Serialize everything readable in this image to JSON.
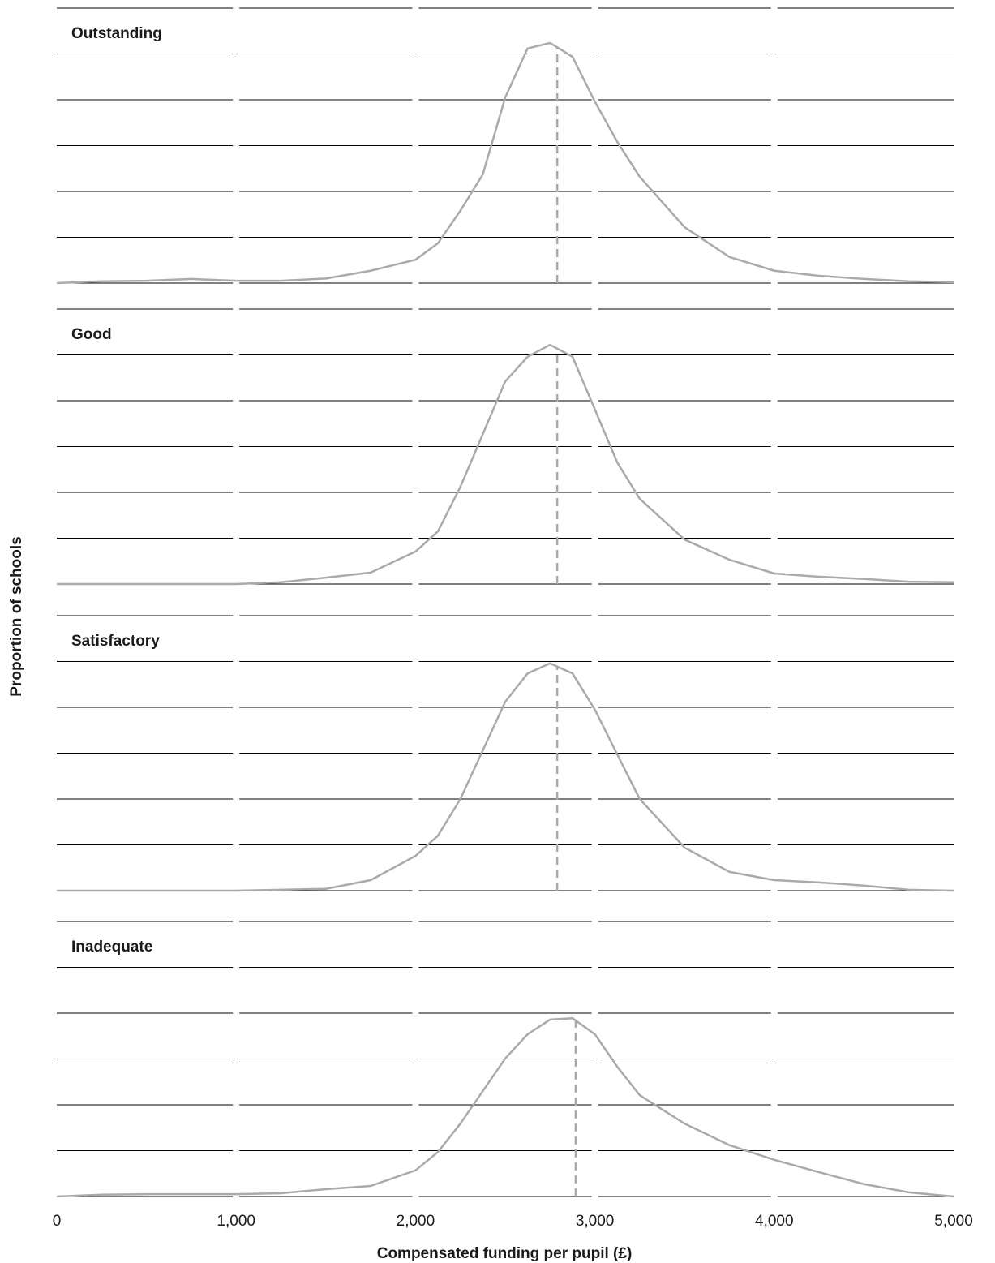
{
  "chart_data": [
    {
      "type": "line",
      "title": "Outstanding",
      "ylabel": "Proportion of schools",
      "x": [
        0,
        250,
        500,
        750,
        1000,
        1250,
        1500,
        1750,
        2000,
        2125,
        2250,
        2375,
        2500,
        2625,
        2750,
        2875,
        3000,
        3125,
        3250,
        3500,
        3750,
        4000,
        4250,
        4500,
        4750,
        5000
      ],
      "values": [
        0,
        0.04,
        0.05,
        0.09,
        0.05,
        0.05,
        0.1,
        0.27,
        0.51,
        0.87,
        1.58,
        2.37,
        4.05,
        5.12,
        5.24,
        4.94,
        3.96,
        3.08,
        2.32,
        1.22,
        0.57,
        0.27,
        0.16,
        0.09,
        0.04,
        0.02
      ],
      "reference_line": 2790,
      "color": "#aaaaaa",
      "xlim": [
        0,
        5000
      ],
      "ylim": [
        0,
        6
      ],
      "yticks": [
        0,
        1,
        2,
        3,
        4,
        5,
        6
      ],
      "grid": true
    },
    {
      "type": "line",
      "title": "Good",
      "x": [
        0,
        250,
        500,
        750,
        1000,
        1250,
        1500,
        1750,
        2000,
        2125,
        2250,
        2375,
        2500,
        2625,
        2750,
        2875,
        3000,
        3125,
        3250,
        3500,
        3750,
        4000,
        4250,
        4500,
        4750,
        5000
      ],
      "values": [
        0,
        0,
        0,
        0,
        0,
        0.04,
        0.14,
        0.25,
        0.71,
        1.15,
        2.12,
        3.27,
        4.42,
        4.96,
        5.22,
        4.96,
        3.81,
        2.65,
        1.86,
        0.97,
        0.53,
        0.23,
        0.16,
        0.11,
        0.05,
        0.04
      ],
      "reference_line": 2790,
      "color": "#aaaaaa",
      "xlim": [
        0,
        5000
      ],
      "ylim": [
        0,
        6
      ],
      "yticks": [
        0,
        1,
        2,
        3,
        4,
        5,
        6
      ],
      "grid": true
    },
    {
      "type": "line",
      "title": "Satisfactory",
      "x": [
        0,
        250,
        500,
        750,
        1000,
        1250,
        1500,
        1750,
        2000,
        2125,
        2250,
        2375,
        2500,
        2625,
        2750,
        2875,
        3000,
        3125,
        3250,
        3500,
        3750,
        4000,
        4250,
        4500,
        4750,
        5000
      ],
      "values": [
        0,
        0,
        0,
        0,
        0,
        0.02,
        0.04,
        0.23,
        0.76,
        1.2,
        2.0,
        3.06,
        4.12,
        4.74,
        4.96,
        4.74,
        3.95,
        2.97,
        2.0,
        0.94,
        0.41,
        0.23,
        0.18,
        0.11,
        0.02,
        0
      ],
      "reference_line": 2790,
      "color": "#aaaaaa",
      "xlim": [
        0,
        5000
      ],
      "ylim": [
        0,
        6
      ],
      "yticks": [
        0,
        1,
        2,
        3,
        4,
        5,
        6
      ],
      "grid": true
    },
    {
      "type": "line",
      "title": "Inadequate",
      "xlabel": "Compensated funding per pupil (£)",
      "x": [
        0,
        250,
        500,
        750,
        1000,
        1250,
        1500,
        1750,
        2000,
        2125,
        2250,
        2375,
        2500,
        2625,
        2750,
        2875,
        3000,
        3125,
        3250,
        3500,
        3750,
        4000,
        4250,
        4500,
        4750,
        5000
      ],
      "values": [
        0,
        0.04,
        0.05,
        0.05,
        0.05,
        0.07,
        0.16,
        0.23,
        0.57,
        0.97,
        1.59,
        2.3,
        3.01,
        3.54,
        3.86,
        3.89,
        3.54,
        2.83,
        2.21,
        1.59,
        1.12,
        0.8,
        0.53,
        0.27,
        0.09,
        0
      ],
      "reference_line": 2893,
      "color": "#aaaaaa",
      "xlim": [
        0,
        5000
      ],
      "ylim": [
        0,
        6
      ],
      "yticks": [
        0,
        1,
        2,
        3,
        4,
        5,
        6
      ],
      "grid": true,
      "xticks": [
        0,
        {
          "value": 1000,
          "label": "1,000"
        },
        {
          "value": 2000,
          "label": "2,000"
        },
        {
          "value": 3000,
          "label": "3,000"
        },
        {
          "value": 4000,
          "label": "4,000"
        },
        {
          "value": 5000,
          "label": "5,000"
        }
      ]
    }
  ]
}
